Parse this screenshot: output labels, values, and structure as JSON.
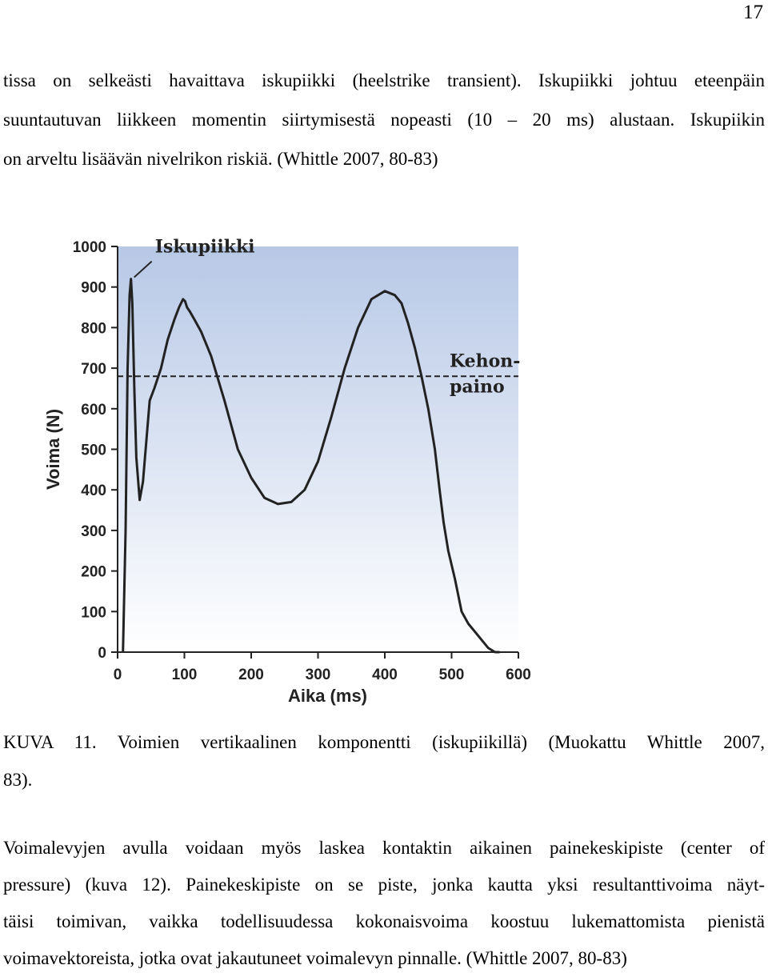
{
  "page_number": "17",
  "paragraph1": {
    "lines": [
      "tissa on selkeästi havaittava iskupiikki (heelstrike transient). Iskupiikki johtuu eteenpäin",
      "suuntautuvan liikkeen momentin siirtymisestä nopeasti (10 – 20 ms) alustaan. Iskupiikin",
      "on arveltu lisäävän nivelrikon riskiä. (Whittle 2007, 80-83)"
    ]
  },
  "caption": {
    "lines": [
      "KUVA 11. Voimien vertikaalinen komponentti (iskupiikillä) (Muokattu Whittle 2007,",
      "83)."
    ]
  },
  "paragraph2": {
    "lines": [
      "Voimalevyjen avulla voidaan myös laskea kontaktin aikainen painekeskipiste (center of",
      "pressure) (kuva 12). Painekeskipiste on se piste, jonka kautta yksi resultanttivoima näyt-",
      "täisi toimivan, vaikka todellisuudessa kokonaisvoima koostuu lukemattomista pienistä",
      "voimavektoreista, jotka ovat jakautuneet voimalevyn pinnalle.  (Whittle 2007, 80-83)"
    ]
  },
  "chart_data": {
    "type": "line",
    "xlabel": "Aika (ms)",
    "ylabel": "Voima (N)",
    "xlim": [
      0,
      600
    ],
    "ylim": [
      0,
      1000
    ],
    "x_ticks": [
      "0",
      "100",
      "200",
      "300",
      "400",
      "500",
      "600"
    ],
    "y_ticks": [
      "0",
      "100",
      "200",
      "300",
      "400",
      "500",
      "600",
      "700",
      "800",
      "900",
      "1000"
    ],
    "grid": false,
    "background_gradient": [
      "#b7c8e6",
      "#ffffff"
    ],
    "series": [
      {
        "color": "#222222",
        "x": [
          8,
          12,
          15,
          18,
          20,
          22,
          25,
          28,
          33,
          38,
          43,
          48,
          55,
          65,
          75,
          85,
          92,
          98,
          101,
          104,
          108,
          115,
          125,
          140,
          160,
          180,
          200,
          220,
          240,
          260,
          280,
          300,
          320,
          340,
          360,
          380,
          400,
          415,
          425,
          435,
          445,
          455,
          465,
          475,
          482,
          488,
          495,
          505,
          515,
          525,
          535,
          545,
          555,
          565,
          572
        ],
        "y": [
          0,
          300,
          700,
          880,
          920,
          860,
          650,
          480,
          375,
          420,
          520,
          620,
          650,
          700,
          770,
          820,
          850,
          870,
          865,
          850,
          840,
          820,
          790,
          730,
          620,
          500,
          430,
          380,
          365,
          370,
          400,
          470,
          580,
          700,
          800,
          870,
          890,
          880,
          860,
          810,
          750,
          680,
          600,
          500,
          400,
          320,
          250,
          180,
          100,
          70,
          50,
          30,
          10,
          0,
          0
        ]
      }
    ],
    "reference_line": {
      "y": 680,
      "style": "dashed"
    },
    "annotations": [
      {
        "text": "Iskupiikki",
        "x": 20,
        "y": 920
      },
      {
        "text": "Kehon-",
        "x": 500,
        "y": 700
      },
      {
        "text": "paino",
        "x": 500,
        "y": 640
      }
    ]
  }
}
